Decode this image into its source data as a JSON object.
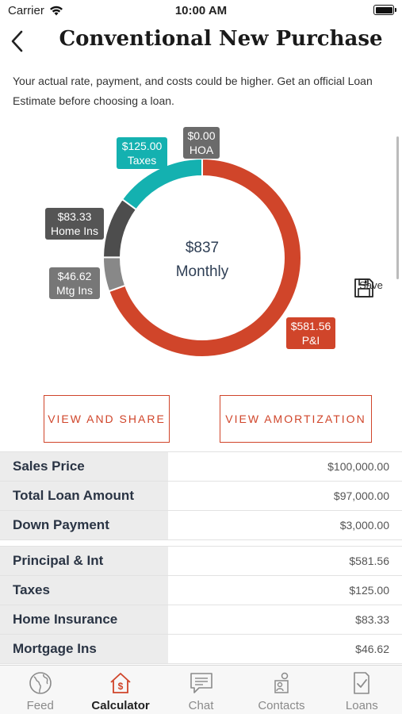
{
  "status_bar": {
    "carrier": "Carrier",
    "time": "10:00 AM"
  },
  "header": {
    "title": "Conventional New Purchase"
  },
  "disclaimer": "Your actual rate, payment, and costs could be higher. Get an official Loan Estimate before choosing a loan.",
  "chart_data": {
    "type": "pie",
    "center_amount": "$837",
    "center_label": "Monthly",
    "slices": [
      {
        "name": "P&I",
        "value": 581.56,
        "label_value": "$581.56",
        "label_name": "P&I",
        "color": "#d0452a"
      },
      {
        "name": "Mtg Ins",
        "value": 46.62,
        "label_value": "$46.62",
        "label_name": "Mtg Ins",
        "color": "#888888"
      },
      {
        "name": "Home Ins",
        "value": 83.33,
        "label_value": "$83.33",
        "label_name": "Home Ins",
        "color": "#4d4d4d"
      },
      {
        "name": "Taxes",
        "value": 125.0,
        "label_value": "$125.00",
        "label_name": "Taxes",
        "color": "#14b1b0"
      },
      {
        "name": "HOA",
        "value": 0.0,
        "label_value": "$0.00",
        "label_name": "HOA",
        "color": "#6b6b6b"
      }
    ]
  },
  "save": {
    "label": "Save",
    "icon": "floppy-disk-icon"
  },
  "actions": {
    "share_label": "VIEW AND SHARE",
    "amortization_label": "VIEW AMORTIZATION"
  },
  "loan_summary": [
    {
      "label": "Sales Price",
      "value": "$100,000.00"
    },
    {
      "label": "Total Loan Amount",
      "value": "$97,000.00"
    },
    {
      "label": "Down Payment",
      "value": "$3,000.00"
    }
  ],
  "payment_breakdown": [
    {
      "label": "Principal & Int",
      "value": "$581.56"
    },
    {
      "label": "Taxes",
      "value": "$125.00"
    },
    {
      "label": "Home Insurance",
      "value": "$83.33"
    },
    {
      "label": "Mortgage Ins",
      "value": "$46.62"
    }
  ],
  "tabs": [
    {
      "label": "Feed",
      "icon": "globe-icon",
      "active": false
    },
    {
      "label": "Calculator",
      "icon": "house-dollar-icon",
      "active": true
    },
    {
      "label": "Chat",
      "icon": "chat-bubble-icon",
      "active": false
    },
    {
      "label": "Contacts",
      "icon": "contacts-icon",
      "active": false
    },
    {
      "label": "Loans",
      "icon": "document-check-icon",
      "active": false
    }
  ],
  "colors": {
    "accent": "#d0452a",
    "teal": "#14b1b0",
    "navy_text": "#2a3444"
  }
}
